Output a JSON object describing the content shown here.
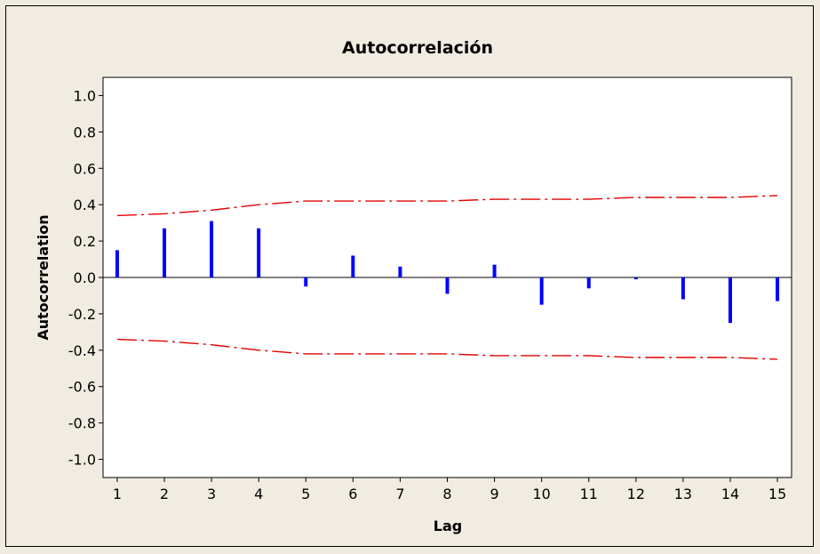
{
  "chart_data": {
    "type": "bar",
    "title": "Autocorrelación",
    "xlabel": "Lag",
    "ylabel": "Autocorrelation",
    "ylim": [
      -1.1,
      1.1
    ],
    "xlim": [
      0.7,
      15.3
    ],
    "x_ticks": [
      "1",
      "2",
      "3",
      "4",
      "5",
      "6",
      "7",
      "8",
      "9",
      "10",
      "11",
      "12",
      "13",
      "14",
      "15"
    ],
    "y_ticks": [
      "1.0",
      "0.8",
      "0.6",
      "0.4",
      "0.2",
      "0.0",
      "-0.2",
      "-0.4",
      "-0.6",
      "-0.8",
      "-1.0"
    ],
    "series": [
      {
        "x": [
          1,
          2,
          3,
          4,
          5,
          6,
          7,
          8,
          9,
          10,
          11,
          12,
          13,
          14,
          15
        ],
        "values": [
          0.15,
          0.27,
          0.31,
          0.27,
          -0.05,
          0.12,
          0.06,
          -0.09,
          0.07,
          -0.15,
          -0.06,
          -0.01,
          -0.12,
          -0.25,
          -0.13
        ]
      }
    ],
    "confidence_limits": {
      "x": [
        1,
        2,
        3,
        4,
        5,
        6,
        7,
        8,
        9,
        10,
        11,
        12,
        13,
        14,
        15
      ],
      "upper": [
        0.34,
        0.35,
        0.37,
        0.4,
        0.42,
        0.42,
        0.42,
        0.42,
        0.43,
        0.43,
        0.43,
        0.44,
        0.44,
        0.44,
        0.45
      ],
      "lower": [
        -0.34,
        -0.35,
        -0.37,
        -0.4,
        -0.42,
        -0.42,
        -0.42,
        -0.42,
        -0.43,
        -0.43,
        -0.43,
        -0.44,
        -0.44,
        -0.44,
        -0.45
      ]
    },
    "zero_line": true,
    "grid": false,
    "colors": {
      "bars": "#0000ff",
      "limits": "#e00000",
      "axis": "#000000",
      "plot_bg": "#ffffff",
      "background": "#efebe0"
    }
  }
}
